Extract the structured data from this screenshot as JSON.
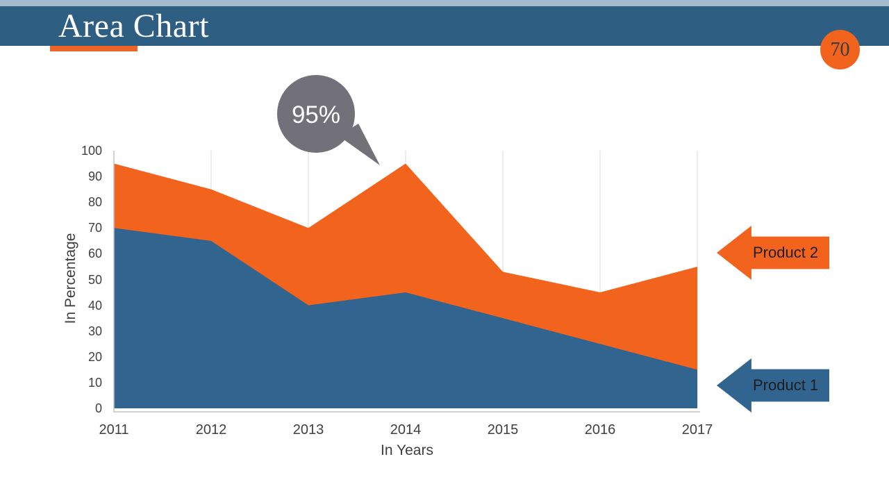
{
  "header": {
    "title": "Area Chart",
    "page_number": "70"
  },
  "chart_data": {
    "type": "area",
    "stacked": true,
    "title": "",
    "xlabel": "In Years",
    "ylabel": "In Percentage",
    "categories": [
      "2011",
      "2012",
      "2013",
      "2014",
      "2015",
      "2016",
      "2017"
    ],
    "series": [
      {
        "name": "Product 1",
        "color": "#31648f",
        "values": [
          70,
          65,
          40,
          45,
          35,
          25,
          15
        ]
      },
      {
        "name": "Product 2",
        "color": "#f2641e",
        "values": [
          25,
          20,
          30,
          50,
          18,
          20,
          40
        ],
        "cumulative_top": [
          95,
          85,
          70,
          95,
          53,
          45,
          55
        ]
      }
    ],
    "ylim": [
      0,
      100
    ],
    "ytick_step": 10,
    "yticks": [
      0,
      10,
      20,
      30,
      40,
      50,
      60,
      70,
      80,
      90,
      100
    ],
    "grid": "vertical-only",
    "legend_position": "right-arrows",
    "annotation": {
      "text": "95%",
      "x": "2014",
      "y": 95
    }
  },
  "colors": {
    "top_strip": "#a4bacd",
    "header_bar": "#2e5f82",
    "accent_orange": "#f2641e",
    "series_blue": "#31648f",
    "bubble_gray": "#72717a",
    "gridline": "#d9d9d9",
    "axis_line": "#c4c4c4",
    "tick_text": "#3f3f3f"
  }
}
